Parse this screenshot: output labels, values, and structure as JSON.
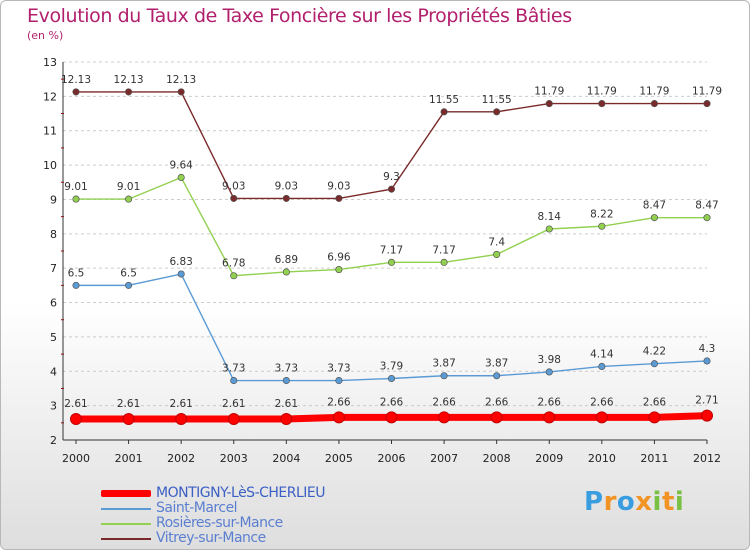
{
  "chart_data": {
    "type": "line",
    "title": "Evolution du Taux de Taxe Foncière sur les Propriétés Bâties",
    "unit_label": "(en %)",
    "x": [
      "2000",
      "2001",
      "2002",
      "2003",
      "2004",
      "2005",
      "2006",
      "2007",
      "2008",
      "2009",
      "2010",
      "2011",
      "2012"
    ],
    "ylim": [
      2,
      13
    ],
    "yticks": [
      "2",
      "3",
      "4",
      "5",
      "6",
      "7",
      "8",
      "9",
      "10",
      "11",
      "12",
      "13"
    ],
    "grid": "horizontal dashed",
    "legend_position": "bottom-left",
    "series": [
      {
        "name": "MONTIGNY-LèS-CHERLIEU",
        "color": "#ff0000",
        "values": [
          2.61,
          2.61,
          2.61,
          2.61,
          2.61,
          2.66,
          2.66,
          2.66,
          2.66,
          2.66,
          2.66,
          2.66,
          2.71
        ],
        "labels": [
          "2.61",
          "2.61",
          "2.61",
          "2.61",
          "2.61",
          "2.66",
          "2.66",
          "2.66",
          "2.66",
          "2.66",
          "2.66",
          "2.66",
          "2.71"
        ]
      },
      {
        "name": "Saint-Marcel",
        "color": "#5b9bd5",
        "values": [
          6.5,
          6.5,
          6.83,
          3.73,
          3.73,
          3.73,
          3.79,
          3.87,
          3.87,
          3.98,
          4.14,
          4.22,
          4.3
        ],
        "labels": [
          "6.5",
          "6.5",
          "6.83",
          "3.73",
          "3.73",
          "3.73",
          "3.79",
          "3.87",
          "3.87",
          "3.98",
          "4.14",
          "4.22",
          "4.3"
        ]
      },
      {
        "name": "Rosières-sur-Mance",
        "color": "#92d050",
        "values": [
          9.01,
          9.01,
          9.64,
          6.78,
          6.89,
          6.96,
          7.17,
          7.17,
          7.4,
          8.14,
          8.22,
          8.47,
          8.47
        ],
        "labels": [
          "9.01",
          "9.01",
          "9.64",
          "6.78",
          "6.89",
          "6.96",
          "7.17",
          "7.17",
          "7.4",
          "8.14",
          "8.22",
          "8.47",
          "8.47"
        ]
      },
      {
        "name": "Vitrey-sur-Mance",
        "color": "#7a2a2a",
        "values": [
          12.13,
          12.13,
          12.13,
          9.03,
          9.03,
          9.03,
          9.3,
          11.55,
          11.55,
          11.79,
          11.79,
          11.79,
          11.79
        ],
        "labels": [
          "12.13",
          "12.13",
          "12.13",
          "9.03",
          "9.03",
          "9.03",
          "9.3",
          "11.55",
          "11.55",
          "11.79",
          "11.79",
          "11.79",
          "11.79"
        ]
      }
    ]
  },
  "brand": {
    "letters": [
      "P",
      "r",
      "o",
      "x",
      "i",
      "t",
      "i"
    ],
    "colors": [
      "#3a9de0",
      "#f29325",
      "#3a9de0",
      "#f29325",
      "#7ac143",
      "#f29325",
      "#7ac143"
    ]
  }
}
